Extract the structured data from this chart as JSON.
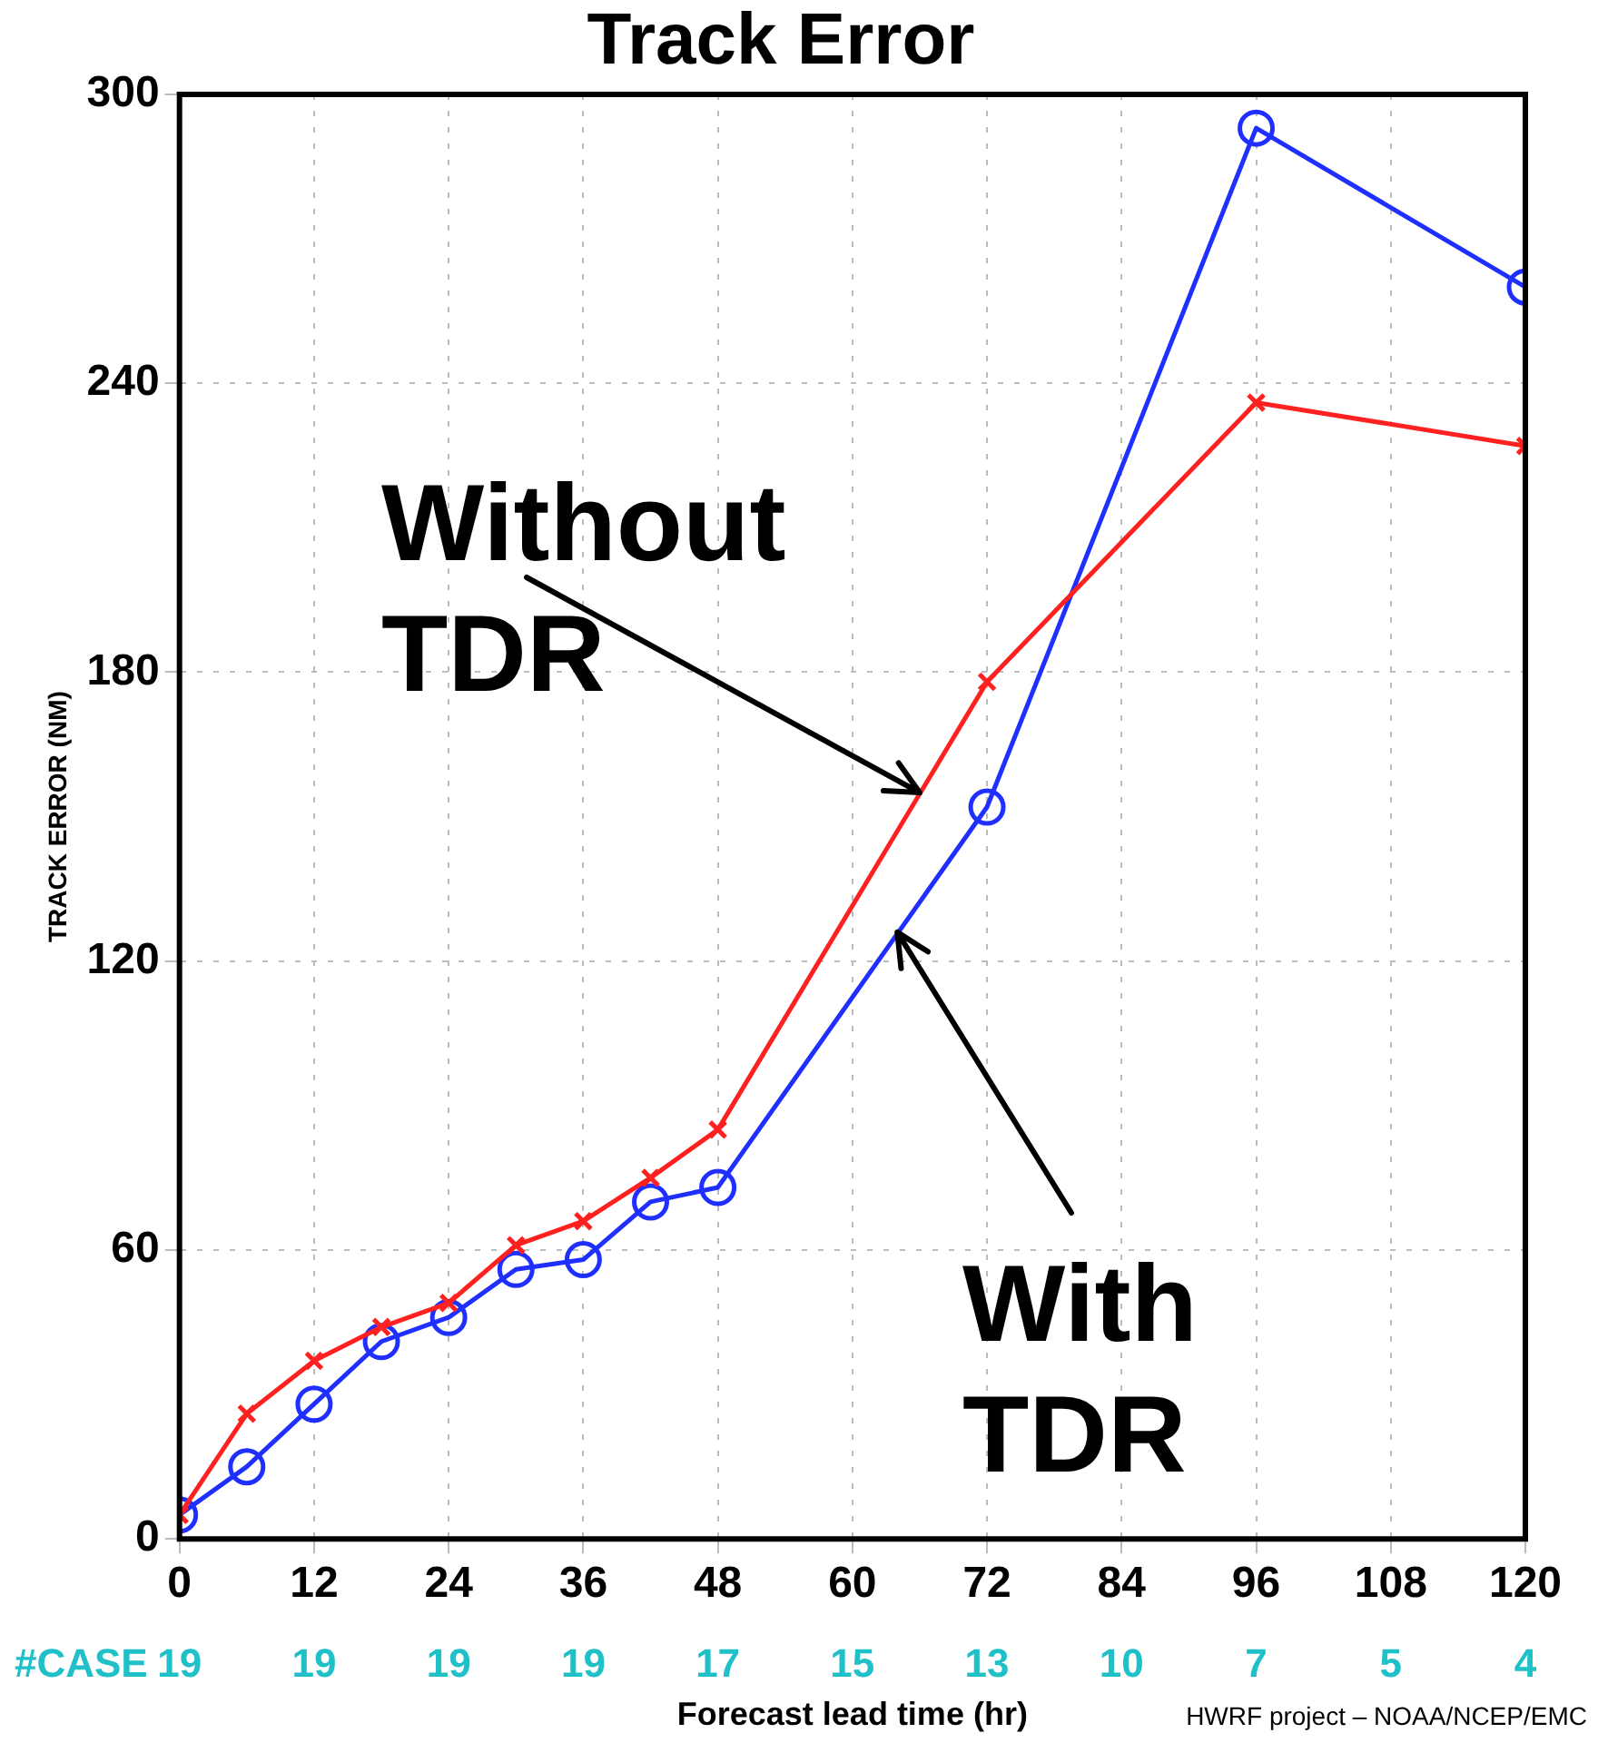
{
  "chart_data": {
    "type": "line",
    "title": "Track Error",
    "xlabel": "Forecast lead time (hr)",
    "ylabel": "TRACK ERROR (NM)",
    "xlim": [
      0,
      120
    ],
    "xticks": [
      0,
      12,
      24,
      36,
      48,
      60,
      72,
      84,
      96,
      108,
      120
    ],
    "ylim": [
      0,
      300
    ],
    "yticks": [
      0,
      60,
      120,
      180,
      240,
      300
    ],
    "grid": true,
    "legend": false,
    "series": [
      {
        "color": "#ff2020",
        "marker": "cross",
        "x": [
          0,
          6,
          12,
          18,
          24,
          30,
          36,
          42,
          48,
          72,
          96,
          120
        ],
        "values": [
          5,
          26,
          37,
          44,
          49,
          61,
          66,
          75,
          85,
          178,
          236,
          227
        ]
      },
      {
        "color": "#1f2fff",
        "marker": "circle",
        "x": [
          0,
          6,
          12,
          18,
          24,
          30,
          36,
          42,
          48,
          72,
          96,
          120
        ],
        "values": [
          5,
          15,
          28,
          41,
          46,
          56,
          58,
          70,
          73,
          152,
          293,
          260
        ]
      }
    ],
    "annotations": [
      {
        "text": "Without TDR",
        "x": 66,
        "y": 155
      },
      {
        "text": "With TDR",
        "x": 64,
        "y": 126
      },
      "#CASE 19 19 19 19 17 15 13 10 7 5 4",
      "HWRF project – NOAA/NCEP/EMC"
    ]
  }
}
